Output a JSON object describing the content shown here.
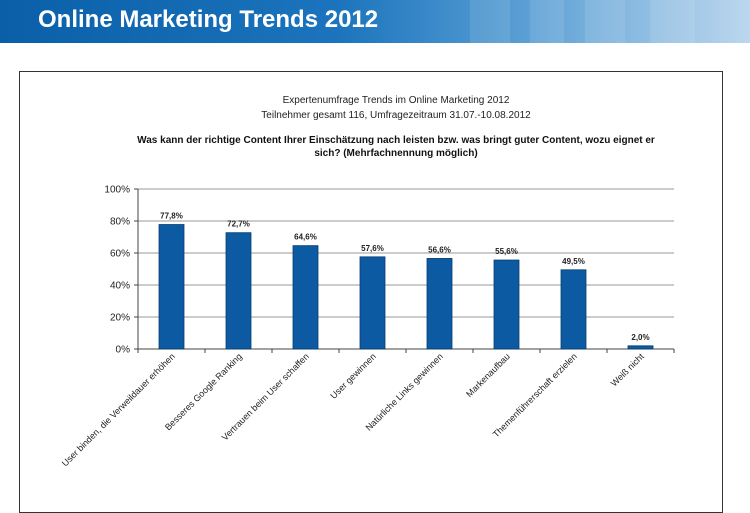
{
  "header": {
    "title": "Online Marketing Trends 2012"
  },
  "colors": {
    "banner": "#0a5fa8",
    "bar": "#0b5aa2",
    "bar_stroke": "#083d70"
  },
  "chart_data": {
    "type": "bar",
    "title_lines": [
      "Expertenumfrage  Trends  im Online Marketing 2012",
      "Teilnehmer  gesamt 116,  Umfragezeitraum  31.07.-10.08.2012"
    ],
    "question_lines": [
      "Was kann der richtige Content Ihrer Einschätzung  nach leisten bzw. was bringt guter  Content, wozu eignet er",
      "sich?  (Mehrfachnennung möglich)"
    ],
    "categories": [
      "User binden, die Verweildauer erhöhen",
      "Besseres Google Ranking",
      "Vertrauen beim User schaffen",
      "User gewinnen",
      "Natürliche Links gewinnen",
      "Markenaufbau",
      "Themenführerschaft erzielen",
      "Weiß nicht"
    ],
    "values": [
      77.8,
      72.7,
      64.6,
      57.6,
      56.6,
      55.6,
      49.5,
      2.0
    ],
    "value_labels": [
      "77,8%",
      "72,7%",
      "64,6%",
      "57,6%",
      "56,6%",
      "55,6%",
      "49,5%",
      "2,0%"
    ],
    "yticks": [
      "0%",
      "20%",
      "40%",
      "60%",
      "80%",
      "100%"
    ],
    "ylim": [
      0,
      100
    ],
    "grid": true,
    "legend": "none"
  }
}
